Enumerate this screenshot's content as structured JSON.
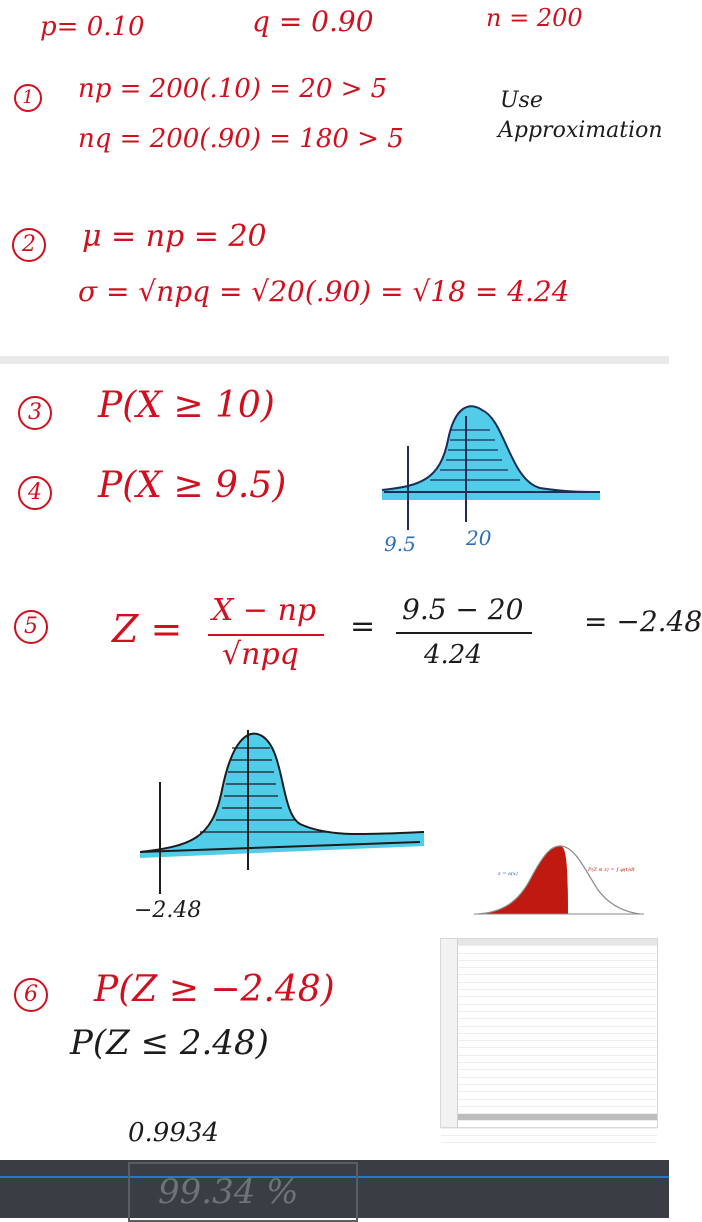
{
  "top": {
    "p": "p= 0.10",
    "q": "q = 0.90",
    "n": "n = 200",
    "step1": {
      "num": "1",
      "np": "np = 200(.10) = 20 > 5",
      "nq": "nq = 200(.90) = 180 > 5",
      "note_line1": "Use",
      "note_line2": "Approximation"
    },
    "step2": {
      "num": "2",
      "mu": "μ = np = 20",
      "sigma": "σ = √npq = √20(.90) = √18 = 4.24"
    }
  },
  "bottom": {
    "step3": {
      "num": "3",
      "text": "P(X ≥ 10)"
    },
    "step4": {
      "num": "4",
      "text": "P(X ≥ 9.5)"
    },
    "curve1": {
      "label_left": "9.5",
      "label_right": "20",
      "shade_color": "#33c4e6"
    },
    "step5": {
      "num": "5",
      "lhs": "Z =",
      "numer": "X − np",
      "denom": "√npq",
      "eq": "=",
      "numer2": "9.5 − 20",
      "denom2": "4.24",
      "result": "= −2.48"
    },
    "curve2": {
      "label": "−2.48",
      "shade_color": "#33c4e6"
    },
    "ref_graph": {
      "left_label": "z = a(x)",
      "right_label": "P(Z ≤ z) = ∫ φ(t)dt",
      "fill_color": "#c0190f"
    },
    "step6": {
      "num": "6",
      "text1": "P(Z ≥ −2.48)",
      "text2": "P(Z ≤ 2.48)",
      "value": "0.9934"
    }
  },
  "answer": {
    "text": "99.34 %"
  },
  "colors": {
    "ink_red": "#d0101e",
    "ink_black": "#1c1c1c",
    "ink_blue": "#2a6fb8",
    "taskbar": "#3a3d44"
  }
}
